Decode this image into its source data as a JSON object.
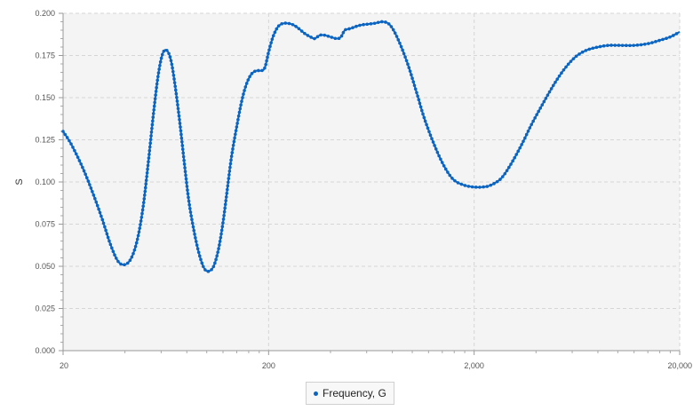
{
  "chart_data": {
    "type": "line",
    "xscale": "log",
    "xlim": [
      20,
      20000
    ],
    "ylim": [
      0,
      0.2
    ],
    "x_ticks": [
      20,
      200,
      2000,
      20000
    ],
    "x_tick_labels": [
      "20",
      "200",
      "2,000",
      "20,000"
    ],
    "y_ticks": [
      0,
      0.025,
      0.05,
      0.075,
      0.1,
      0.125,
      0.15,
      0.175,
      0.2
    ],
    "y_tick_labels": [
      "0.000",
      "0.025",
      "0.050",
      "0.075",
      "0.100",
      "0.125",
      "0.150",
      "0.175",
      "0.200"
    ],
    "xlabel": "",
    "ylabel": "S",
    "grid": true,
    "legend_position": "bottom-center",
    "series": [
      {
        "name": "Frequency, G",
        "color": "#0b64c0",
        "points": [
          [
            20,
            0.13
          ],
          [
            22,
            0.122
          ],
          [
            25,
            0.108
          ],
          [
            28,
            0.093
          ],
          [
            31,
            0.078
          ],
          [
            34,
            0.063
          ],
          [
            37,
            0.053
          ],
          [
            40,
            0.051
          ],
          [
            43,
            0.055
          ],
          [
            46,
            0.066
          ],
          [
            49,
            0.085
          ],
          [
            52,
            0.112
          ],
          [
            55,
            0.14
          ],
          [
            58,
            0.163
          ],
          [
            61,
            0.176
          ],
          [
            64,
            0.178
          ],
          [
            67,
            0.172
          ],
          [
            70,
            0.158
          ],
          [
            74,
            0.135
          ],
          [
            78,
            0.11
          ],
          [
            82,
            0.088
          ],
          [
            87,
            0.07
          ],
          [
            92,
            0.057
          ],
          [
            97,
            0.049
          ],
          [
            102,
            0.047
          ],
          [
            108,
            0.05
          ],
          [
            114,
            0.06
          ],
          [
            120,
            0.076
          ],
          [
            126,
            0.096
          ],
          [
            132,
            0.115
          ],
          [
            140,
            0.133
          ],
          [
            148,
            0.148
          ],
          [
            156,
            0.158
          ],
          [
            165,
            0.164
          ],
          [
            175,
            0.166
          ],
          [
            185,
            0.166
          ],
          [
            192,
            0.168
          ],
          [
            200,
            0.177
          ],
          [
            210,
            0.186
          ],
          [
            222,
            0.192
          ],
          [
            235,
            0.194
          ],
          [
            250,
            0.194
          ],
          [
            265,
            0.193
          ],
          [
            280,
            0.191
          ],
          [
            300,
            0.188
          ],
          [
            320,
            0.186
          ],
          [
            335,
            0.185
          ],
          [
            355,
            0.187
          ],
          [
            375,
            0.187
          ],
          [
            400,
            0.186
          ],
          [
            430,
            0.185
          ],
          [
            450,
            0.186
          ],
          [
            470,
            0.19
          ],
          [
            500,
            0.191
          ],
          [
            560,
            0.193
          ],
          [
            650,
            0.194
          ],
          [
            720,
            0.195
          ],
          [
            780,
            0.193
          ],
          [
            850,
            0.185
          ],
          [
            950,
            0.17
          ],
          [
            1050,
            0.153
          ],
          [
            1150,
            0.137
          ],
          [
            1300,
            0.12
          ],
          [
            1450,
            0.108
          ],
          [
            1600,
            0.101
          ],
          [
            1800,
            0.098
          ],
          [
            2000,
            0.097
          ],
          [
            2200,
            0.097
          ],
          [
            2400,
            0.098
          ],
          [
            2700,
            0.102
          ],
          [
            3000,
            0.11
          ],
          [
            3400,
            0.122
          ],
          [
            3800,
            0.134
          ],
          [
            4300,
            0.146
          ],
          [
            4900,
            0.158
          ],
          [
            5500,
            0.167
          ],
          [
            6200,
            0.174
          ],
          [
            7000,
            0.178
          ],
          [
            8000,
            0.18
          ],
          [
            9000,
            0.181
          ],
          [
            10000,
            0.181
          ],
          [
            12000,
            0.181
          ],
          [
            14000,
            0.182
          ],
          [
            16000,
            0.184
          ],
          [
            18000,
            0.186
          ],
          [
            20000,
            0.189
          ]
        ]
      }
    ]
  }
}
